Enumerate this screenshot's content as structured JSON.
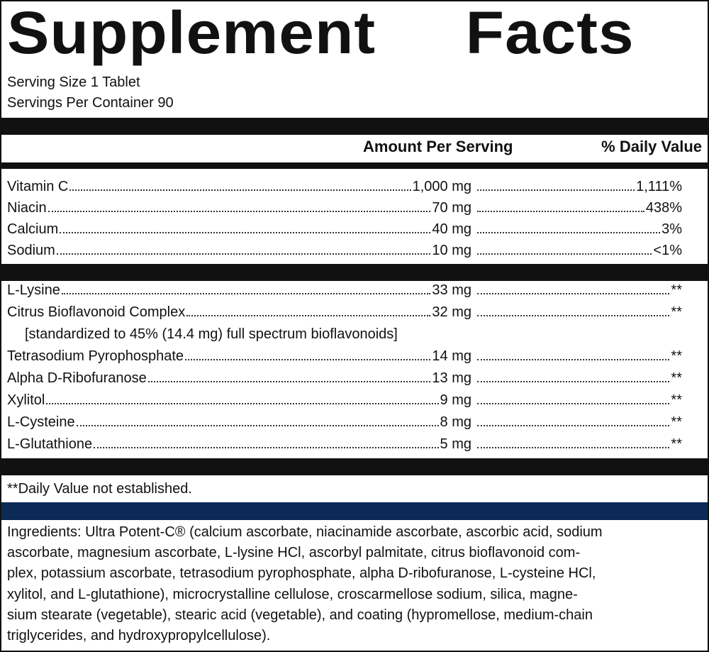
{
  "label": {
    "title": "Supplement Facts",
    "serving_size": "Serving Size 1 Tablet",
    "servings_per_container": "Servings Per Container 90",
    "columns": {
      "amount": "Amount Per Serving",
      "daily_value": "% Daily Value"
    },
    "nutrients": [
      {
        "name": "Vitamin C",
        "amount": "1,000 mg",
        "daily_value": "1,111%"
      },
      {
        "name": "Niacin",
        "amount": "70 mg",
        "daily_value": "438%"
      },
      {
        "name": "Calcium",
        "amount": "40 mg",
        "daily_value": "3%"
      },
      {
        "name": "Sodium",
        "amount": "10 mg",
        "daily_value": "<1%"
      }
    ],
    "other_ingredients": [
      {
        "name": "L-Lysine",
        "amount": "33 mg",
        "daily_value": "**"
      },
      {
        "name": "Citrus Bioflavonoid Complex",
        "amount": "32 mg",
        "daily_value": "**",
        "note": "[standardized to 45% (14.4 mg) full spectrum bioflavonoids]"
      },
      {
        "name": "Tetrasodium Pyrophosphate",
        "amount": "14 mg",
        "daily_value": "**"
      },
      {
        "name": "Alpha D-Ribofuranose",
        "amount": "13 mg",
        "daily_value": "**"
      },
      {
        "name": "Xylitol",
        "amount": "9 mg",
        "daily_value": "**"
      },
      {
        "name": "L-Cysteine",
        "amount": "8 mg",
        "daily_value": "**"
      },
      {
        "name": "L-Glutathione",
        "amount": "5 mg",
        "daily_value": "**"
      }
    ],
    "footnote": "**Daily Value not established.",
    "ingredients": [
      "Ingredients: Ultra Potent-C® (calcium ascorbate, niacinamide ascorbate, ascorbic acid, sodium",
      "ascorbate, magnesium ascorbate, L-lysine HCl, ascorbyl palmitate, citrus bioflavonoid com-",
      "plex, potassium ascorbate, tetrasodium pyrophosphate, alpha D-ribofuranose, L-cysteine HCl,",
      "xylitol, and L-glutathione), microcrystalline cellulose, croscarmellose sodium, silica, magne-",
      "sium stearate (vegetable), stearic acid (vegetable), and coating (hypromellose, medium-chain",
      "triglycerides, and hydroxypropylcellulose)."
    ]
  }
}
